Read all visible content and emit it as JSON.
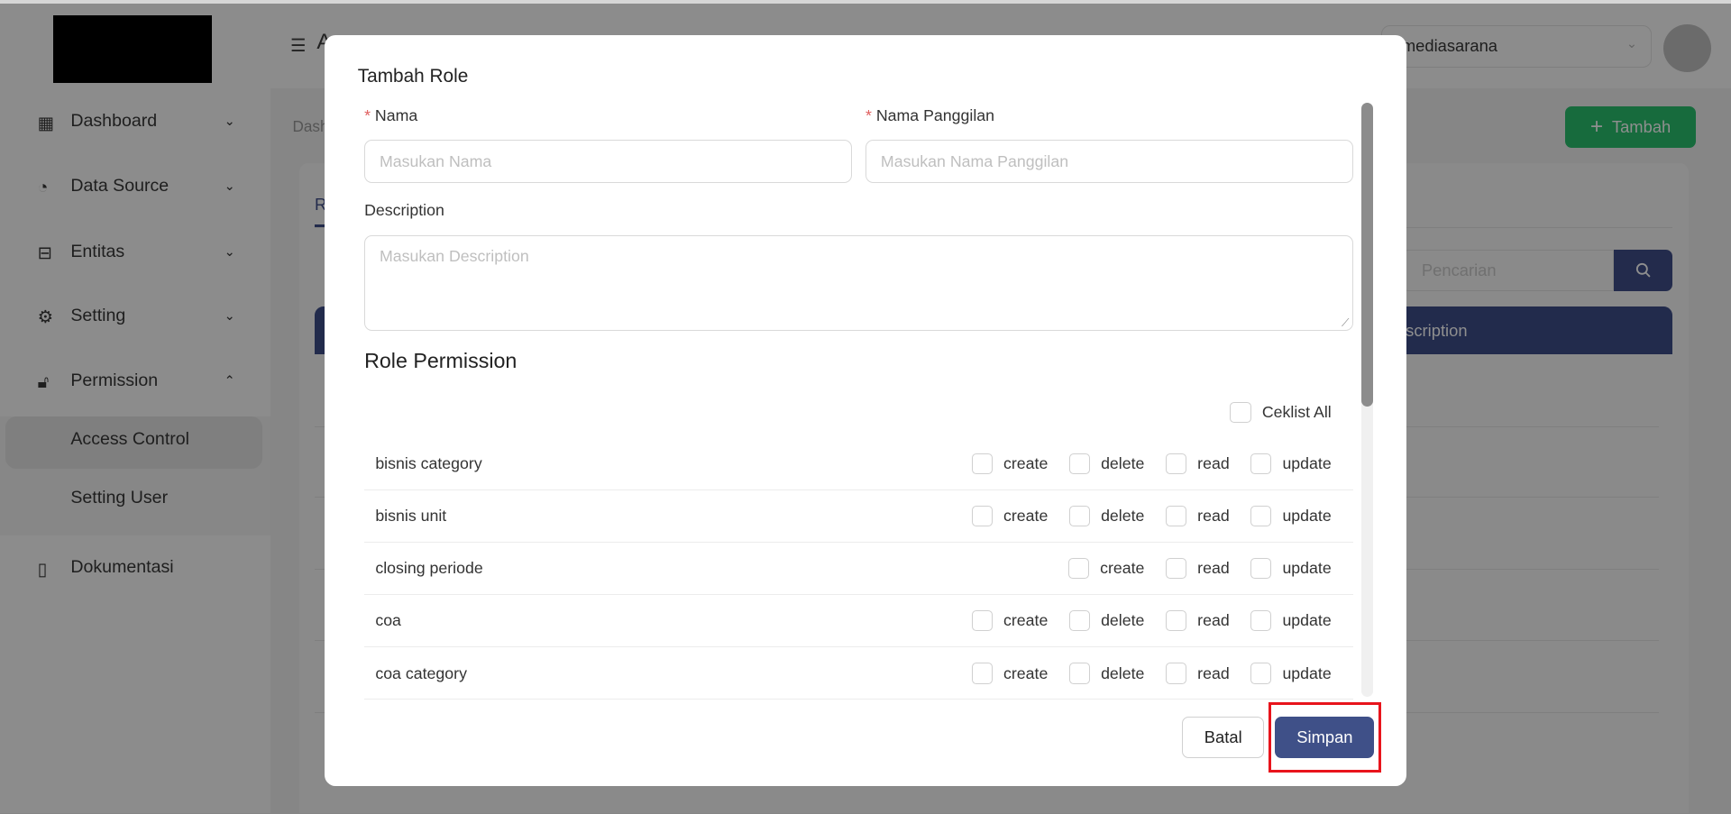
{
  "sidebar": {
    "items": [
      {
        "label": "Dashboard",
        "icon": "grid-icon",
        "chevron": "down"
      },
      {
        "label": "Data Source",
        "icon": "pie-chart-icon",
        "chevron": "down"
      },
      {
        "label": "Entitas",
        "icon": "sliders-icon",
        "chevron": "down"
      },
      {
        "label": "Setting",
        "icon": "gear-icon",
        "chevron": "down"
      },
      {
        "label": "Permission",
        "icon": "lock-icon",
        "chevron": "up"
      }
    ],
    "subitems": [
      {
        "label": "Access Control",
        "active": true
      },
      {
        "label": "Setting User"
      }
    ],
    "bottom": {
      "label": "Dokumentasi",
      "icon": "book-icon"
    }
  },
  "header": {
    "title_partial": "A",
    "company": "mediasarana"
  },
  "page": {
    "breadcrumb_partial": "Dash",
    "add_label": "Tambah",
    "tab_partial": "R",
    "search_placeholder": "Pencarian",
    "column_partial": "escription"
  },
  "modal": {
    "title": "Tambah Role",
    "nama_label": "Nama",
    "nama_placeholder": "Masukan Nama",
    "panggilan_label": "Nama Panggilan",
    "panggilan_placeholder": "Masukan Nama Panggilan",
    "desc_label": "Description",
    "desc_placeholder": "Masukan Description",
    "section": "Role Permission",
    "check_all": "Ceklist All",
    "rows": [
      {
        "name": "bisnis category",
        "perms": [
          "create",
          "delete",
          "read",
          "update"
        ]
      },
      {
        "name": "bisnis unit",
        "perms": [
          "create",
          "delete",
          "read",
          "update"
        ]
      },
      {
        "name": "closing periode",
        "perms": [
          "create",
          "read",
          "update"
        ]
      },
      {
        "name": "coa",
        "perms": [
          "create",
          "delete",
          "read",
          "update"
        ]
      },
      {
        "name": "coa category",
        "perms": [
          "create",
          "delete",
          "read",
          "update"
        ]
      }
    ],
    "cancel": "Batal",
    "save": "Simpan"
  },
  "colors": {
    "primary": "#3f5088",
    "highlight": "#e8141c",
    "success": "#22a45f"
  }
}
